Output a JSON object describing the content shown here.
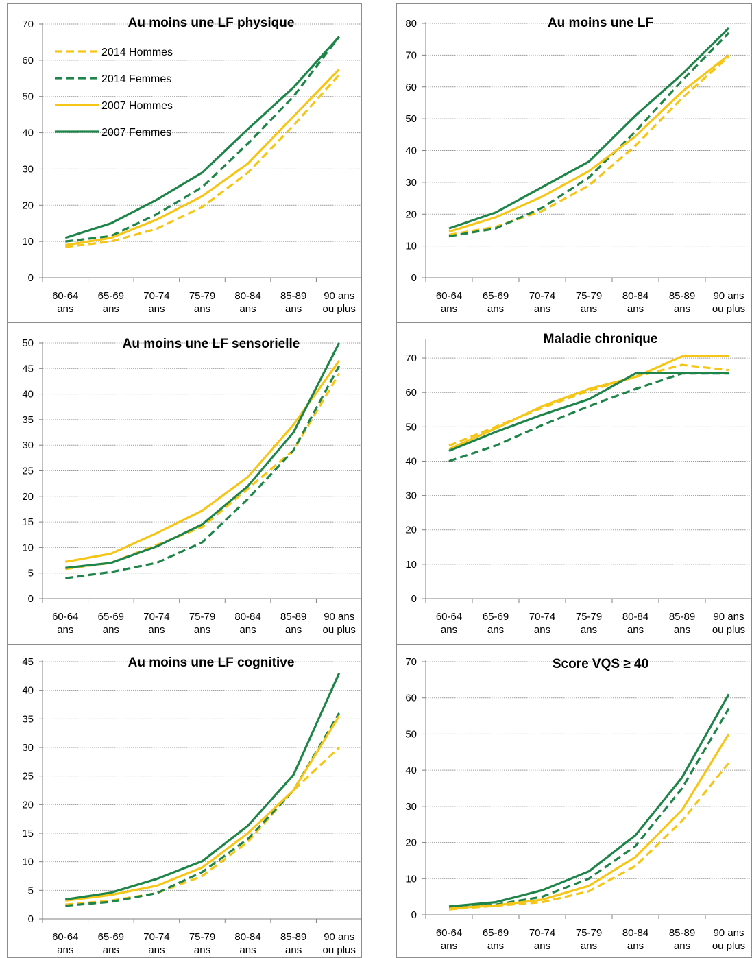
{
  "chart_data": [
    {
      "type": "line",
      "title": "Au moins une LF physique",
      "xlabel": "",
      "ylabel": "",
      "categories": [
        [
          "60-64",
          "ans"
        ],
        [
          "65-69",
          "ans"
        ],
        [
          "70-74",
          "ans"
        ],
        [
          "75-79",
          "ans"
        ],
        [
          "80-84",
          "ans"
        ],
        [
          "85-89",
          "ans"
        ],
        [
          "90 ans",
          "ou plus"
        ]
      ],
      "ylim": [
        0,
        70
      ],
      "yticks": [
        0,
        10,
        20,
        30,
        40,
        50,
        60,
        70
      ],
      "grid": true,
      "legend": "top-left",
      "series": [
        {
          "name": "2014 Hommes",
          "color": "#F5C518",
          "dashed": true,
          "values": [
            8.5,
            10,
            13.5,
            19.5,
            29,
            42,
            56
          ]
        },
        {
          "name": "2014 Femmes",
          "color": "#1E8449",
          "dashed": true,
          "values": [
            10,
            11.5,
            17.5,
            25,
            37,
            50,
            66.5
          ]
        },
        {
          "name": "2007 Hommes",
          "color": "#F5C518",
          "dashed": false,
          "values": [
            9,
            11,
            16,
            22.5,
            31.5,
            44.5,
            57.5
          ]
        },
        {
          "name": "2007 Femmes",
          "color": "#1E8449",
          "dashed": false,
          "values": [
            11,
            15,
            21.5,
            29,
            41,
            52.5,
            66.5
          ]
        }
      ]
    },
    {
      "type": "line",
      "title": "Au moins une LF",
      "xlabel": "",
      "ylabel": "",
      "categories": [
        [
          "60-64",
          "ans"
        ],
        [
          "65-69",
          "ans"
        ],
        [
          "70-74",
          "ans"
        ],
        [
          "75-79",
          "ans"
        ],
        [
          "80-84",
          "ans"
        ],
        [
          "85-89",
          "ans"
        ],
        [
          "90 ans",
          "ou plus"
        ]
      ],
      "ylim": [
        0,
        80
      ],
      "yticks": [
        0,
        10,
        20,
        30,
        40,
        50,
        60,
        70,
        80
      ],
      "grid": true,
      "series": [
        {
          "color": "#F5C518",
          "dashed": true,
          "values": [
            13.5,
            16,
            21,
            29,
            41.5,
            56.5,
            69.5
          ]
        },
        {
          "color": "#1E8449",
          "dashed": true,
          "values": [
            13,
            15.5,
            22,
            31.5,
            46,
            62,
            77
          ]
        },
        {
          "color": "#F5C518",
          "dashed": false,
          "values": [
            14.5,
            19,
            25.5,
            33.5,
            44.5,
            58.5,
            70
          ]
        },
        {
          "color": "#1E8449",
          "dashed": false,
          "values": [
            15.5,
            20.5,
            28.5,
            36.5,
            51,
            64,
            78.5
          ]
        }
      ]
    },
    {
      "type": "line",
      "title": "Au moins une LF sensorielle",
      "xlabel": "",
      "ylabel": "",
      "categories": [
        [
          "60-64",
          "ans"
        ],
        [
          "65-69",
          "ans"
        ],
        [
          "70-74",
          "ans"
        ],
        [
          "75-79",
          "ans"
        ],
        [
          "80-84",
          "ans"
        ],
        [
          "85-89",
          "ans"
        ],
        [
          "90 ans",
          "ou plus"
        ]
      ],
      "ylim": [
        0,
        50
      ],
      "yticks": [
        0,
        5,
        10,
        15,
        20,
        25,
        30,
        35,
        40,
        45,
        50
      ],
      "grid": true,
      "series": [
        {
          "color": "#F5C518",
          "dashed": true,
          "values": [
            5.8,
            7,
            10.5,
            14,
            21.5,
            29,
            44
          ]
        },
        {
          "color": "#1E8449",
          "dashed": true,
          "values": [
            4,
            5.2,
            7,
            11,
            19.5,
            29,
            45.5
          ]
        },
        {
          "color": "#F5C518",
          "dashed": false,
          "values": [
            7.2,
            8.8,
            12.8,
            17.2,
            23.8,
            34,
            46.5
          ]
        },
        {
          "color": "#1E8449",
          "dashed": false,
          "values": [
            6,
            7,
            10.2,
            14.5,
            22,
            32.5,
            50
          ]
        }
      ]
    },
    {
      "type": "line",
      "title": "Maladie chronique",
      "xlabel": "",
      "ylabel": "",
      "categories": [
        [
          "60-64",
          "ans"
        ],
        [
          "65-69",
          "ans"
        ],
        [
          "70-74",
          "ans"
        ],
        [
          "75-79",
          "ans"
        ],
        [
          "80-84",
          "ans"
        ],
        [
          "85-89",
          "ans"
        ],
        [
          "90 ans",
          "ou plus"
        ]
      ],
      "ylim": [
        0,
        75
      ],
      "yticks": [
        0,
        10,
        20,
        30,
        40,
        50,
        60,
        70
      ],
      "grid": true,
      "series": [
        {
          "color": "#F5C518",
          "dashed": true,
          "values": [
            44.5,
            50,
            55.5,
            60.5,
            64.5,
            68,
            66.5
          ]
        },
        {
          "color": "#1E8449",
          "dashed": true,
          "values": [
            40,
            44.5,
            50.5,
            56,
            61,
            65.5,
            65.5
          ]
        },
        {
          "color": "#F5C518",
          "dashed": false,
          "values": [
            43.5,
            49.5,
            56,
            61,
            64.5,
            70.5,
            70.7
          ]
        },
        {
          "color": "#1E8449",
          "dashed": false,
          "values": [
            43,
            48.5,
            53.5,
            58,
            65.5,
            65.7,
            65.7
          ]
        }
      ]
    },
    {
      "type": "line",
      "title": "Au moins une LF cognitive",
      "xlabel": "",
      "ylabel": "",
      "categories": [
        [
          "60-64",
          "ans"
        ],
        [
          "65-69",
          "ans"
        ],
        [
          "70-74",
          "ans"
        ],
        [
          "75-79",
          "ans"
        ],
        [
          "80-84",
          "ans"
        ],
        [
          "85-89",
          "ans"
        ],
        [
          "90 ans",
          "ou plus"
        ]
      ],
      "ylim": [
        0,
        45
      ],
      "yticks": [
        0,
        5,
        10,
        15,
        20,
        25,
        30,
        35,
        40,
        45
      ],
      "grid": true,
      "series": [
        {
          "color": "#F5C518",
          "dashed": true,
          "values": [
            2.5,
            3.2,
            4.5,
            7.5,
            13.5,
            22.5,
            30
          ]
        },
        {
          "color": "#1E8449",
          "dashed": true,
          "values": [
            2.3,
            3,
            4.5,
            8.2,
            14,
            22.5,
            36
          ]
        },
        {
          "color": "#F5C518",
          "dashed": false,
          "values": [
            3.2,
            4.2,
            5.8,
            9,
            15,
            22.5,
            35.5
          ]
        },
        {
          "color": "#1E8449",
          "dashed": false,
          "values": [
            3.4,
            4.6,
            7,
            10.1,
            16.3,
            25.2,
            43
          ]
        }
      ]
    },
    {
      "type": "line",
      "title": "Score VQS ≥ 40",
      "xlabel": "",
      "ylabel": "",
      "categories": [
        [
          "60-64",
          "ans"
        ],
        [
          "65-69",
          "ans"
        ],
        [
          "70-74",
          "ans"
        ],
        [
          "75-79",
          "ans"
        ],
        [
          "80-84",
          "ans"
        ],
        [
          "85-89",
          "ans"
        ],
        [
          "90 ans",
          "ou plus"
        ]
      ],
      "ylim": [
        0,
        70
      ],
      "yticks": [
        0,
        10,
        20,
        30,
        40,
        50,
        60,
        70
      ],
      "grid": true,
      "series": [
        {
          "color": "#F5C518",
          "dashed": true,
          "values": [
            1.5,
            2.5,
            3.5,
            6.5,
            13.5,
            26,
            42
          ]
        },
        {
          "color": "#1E8449",
          "dashed": true,
          "values": [
            2,
            2.8,
            5,
            10,
            19,
            35,
            57
          ]
        },
        {
          "color": "#F5C518",
          "dashed": false,
          "values": [
            1.8,
            2.6,
            4.2,
            8,
            16,
            29,
            50
          ]
        },
        {
          "color": "#1E8449",
          "dashed": false,
          "values": [
            2.3,
            3.5,
            6.8,
            12,
            22,
            38,
            61
          ]
        }
      ]
    }
  ]
}
